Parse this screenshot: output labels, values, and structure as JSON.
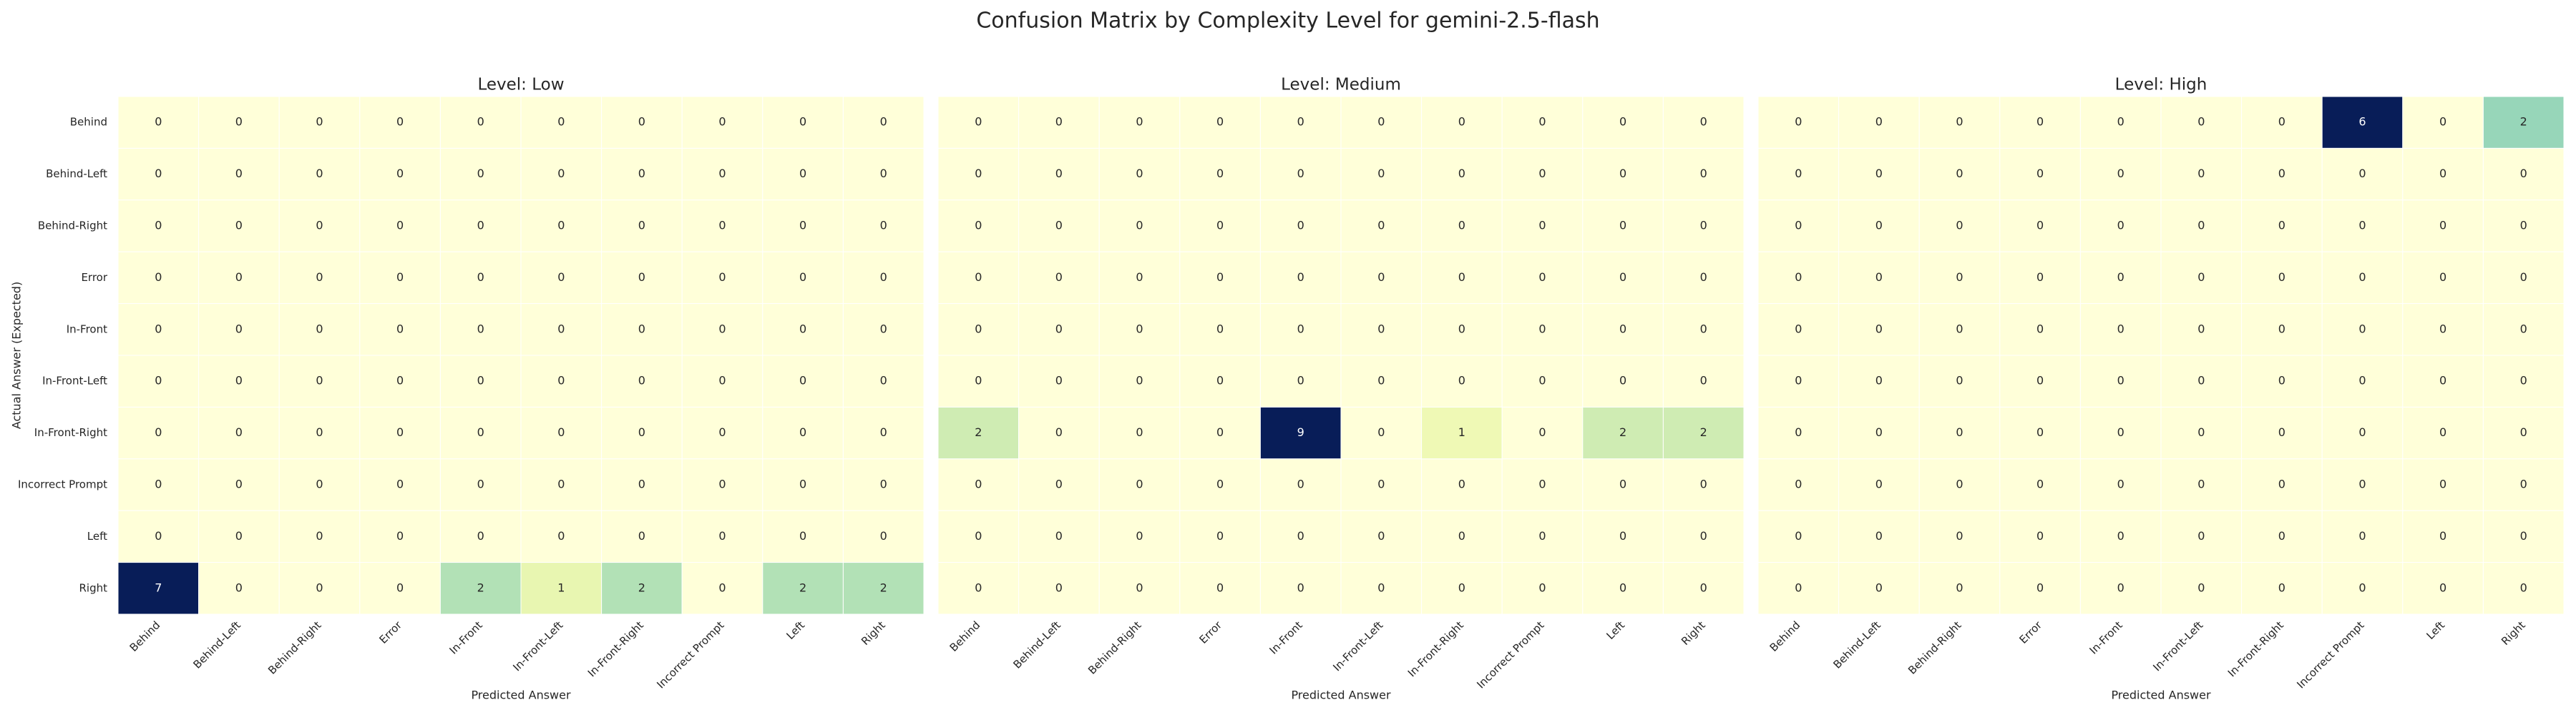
{
  "chart_data": {
    "type": "heatmap",
    "title": "Confusion Matrix by Complexity Level for gemini-2.5-flash",
    "ylabel": "Actual Answer (Expected)",
    "xlabel": "Predicted Answer",
    "colormap": "YlGnBu",
    "x_categories": [
      "Behind",
      "Behind-Left",
      "Behind-Right",
      "Error",
      "In-Front",
      "In-Front-Left",
      "In-Front-Right",
      "Incorrect Prompt",
      "Left",
      "Right"
    ],
    "y_categories": [
      "Behind",
      "Behind-Left",
      "Behind-Right",
      "Error",
      "In-Front",
      "In-Front-Left",
      "In-Front-Right",
      "Incorrect Prompt",
      "Left",
      "Right"
    ],
    "panels": [
      {
        "title": "Level: Low",
        "values": [
          [
            0,
            0,
            0,
            0,
            0,
            0,
            0,
            0,
            0,
            0
          ],
          [
            0,
            0,
            0,
            0,
            0,
            0,
            0,
            0,
            0,
            0
          ],
          [
            0,
            0,
            0,
            0,
            0,
            0,
            0,
            0,
            0,
            0
          ],
          [
            0,
            0,
            0,
            0,
            0,
            0,
            0,
            0,
            0,
            0
          ],
          [
            0,
            0,
            0,
            0,
            0,
            0,
            0,
            0,
            0,
            0
          ],
          [
            0,
            0,
            0,
            0,
            0,
            0,
            0,
            0,
            0,
            0
          ],
          [
            0,
            0,
            0,
            0,
            0,
            0,
            0,
            0,
            0,
            0
          ],
          [
            0,
            0,
            0,
            0,
            0,
            0,
            0,
            0,
            0,
            0
          ],
          [
            0,
            0,
            0,
            0,
            0,
            0,
            0,
            0,
            0,
            0
          ],
          [
            7,
            0,
            0,
            0,
            2,
            1,
            2,
            0,
            2,
            2
          ]
        ]
      },
      {
        "title": "Level: Medium",
        "values": [
          [
            0,
            0,
            0,
            0,
            0,
            0,
            0,
            0,
            0,
            0
          ],
          [
            0,
            0,
            0,
            0,
            0,
            0,
            0,
            0,
            0,
            0
          ],
          [
            0,
            0,
            0,
            0,
            0,
            0,
            0,
            0,
            0,
            0
          ],
          [
            0,
            0,
            0,
            0,
            0,
            0,
            0,
            0,
            0,
            0
          ],
          [
            0,
            0,
            0,
            0,
            0,
            0,
            0,
            0,
            0,
            0
          ],
          [
            0,
            0,
            0,
            0,
            0,
            0,
            0,
            0,
            0,
            0
          ],
          [
            2,
            0,
            0,
            0,
            9,
            0,
            1,
            0,
            2,
            2
          ],
          [
            0,
            0,
            0,
            0,
            0,
            0,
            0,
            0,
            0,
            0
          ],
          [
            0,
            0,
            0,
            0,
            0,
            0,
            0,
            0,
            0,
            0
          ],
          [
            0,
            0,
            0,
            0,
            0,
            0,
            0,
            0,
            0,
            0
          ]
        ]
      },
      {
        "title": "Level: High",
        "values": [
          [
            0,
            0,
            0,
            0,
            0,
            0,
            0,
            6,
            0,
            2
          ],
          [
            0,
            0,
            0,
            0,
            0,
            0,
            0,
            0,
            0,
            0
          ],
          [
            0,
            0,
            0,
            0,
            0,
            0,
            0,
            0,
            0,
            0
          ],
          [
            0,
            0,
            0,
            0,
            0,
            0,
            0,
            0,
            0,
            0
          ],
          [
            0,
            0,
            0,
            0,
            0,
            0,
            0,
            0,
            0,
            0
          ],
          [
            0,
            0,
            0,
            0,
            0,
            0,
            0,
            0,
            0,
            0
          ],
          [
            0,
            0,
            0,
            0,
            0,
            0,
            0,
            0,
            0,
            0
          ],
          [
            0,
            0,
            0,
            0,
            0,
            0,
            0,
            0,
            0,
            0
          ],
          [
            0,
            0,
            0,
            0,
            0,
            0,
            0,
            0,
            0,
            0
          ],
          [
            0,
            0,
            0,
            0,
            0,
            0,
            0,
            0,
            0,
            0
          ]
        ]
      }
    ]
  }
}
